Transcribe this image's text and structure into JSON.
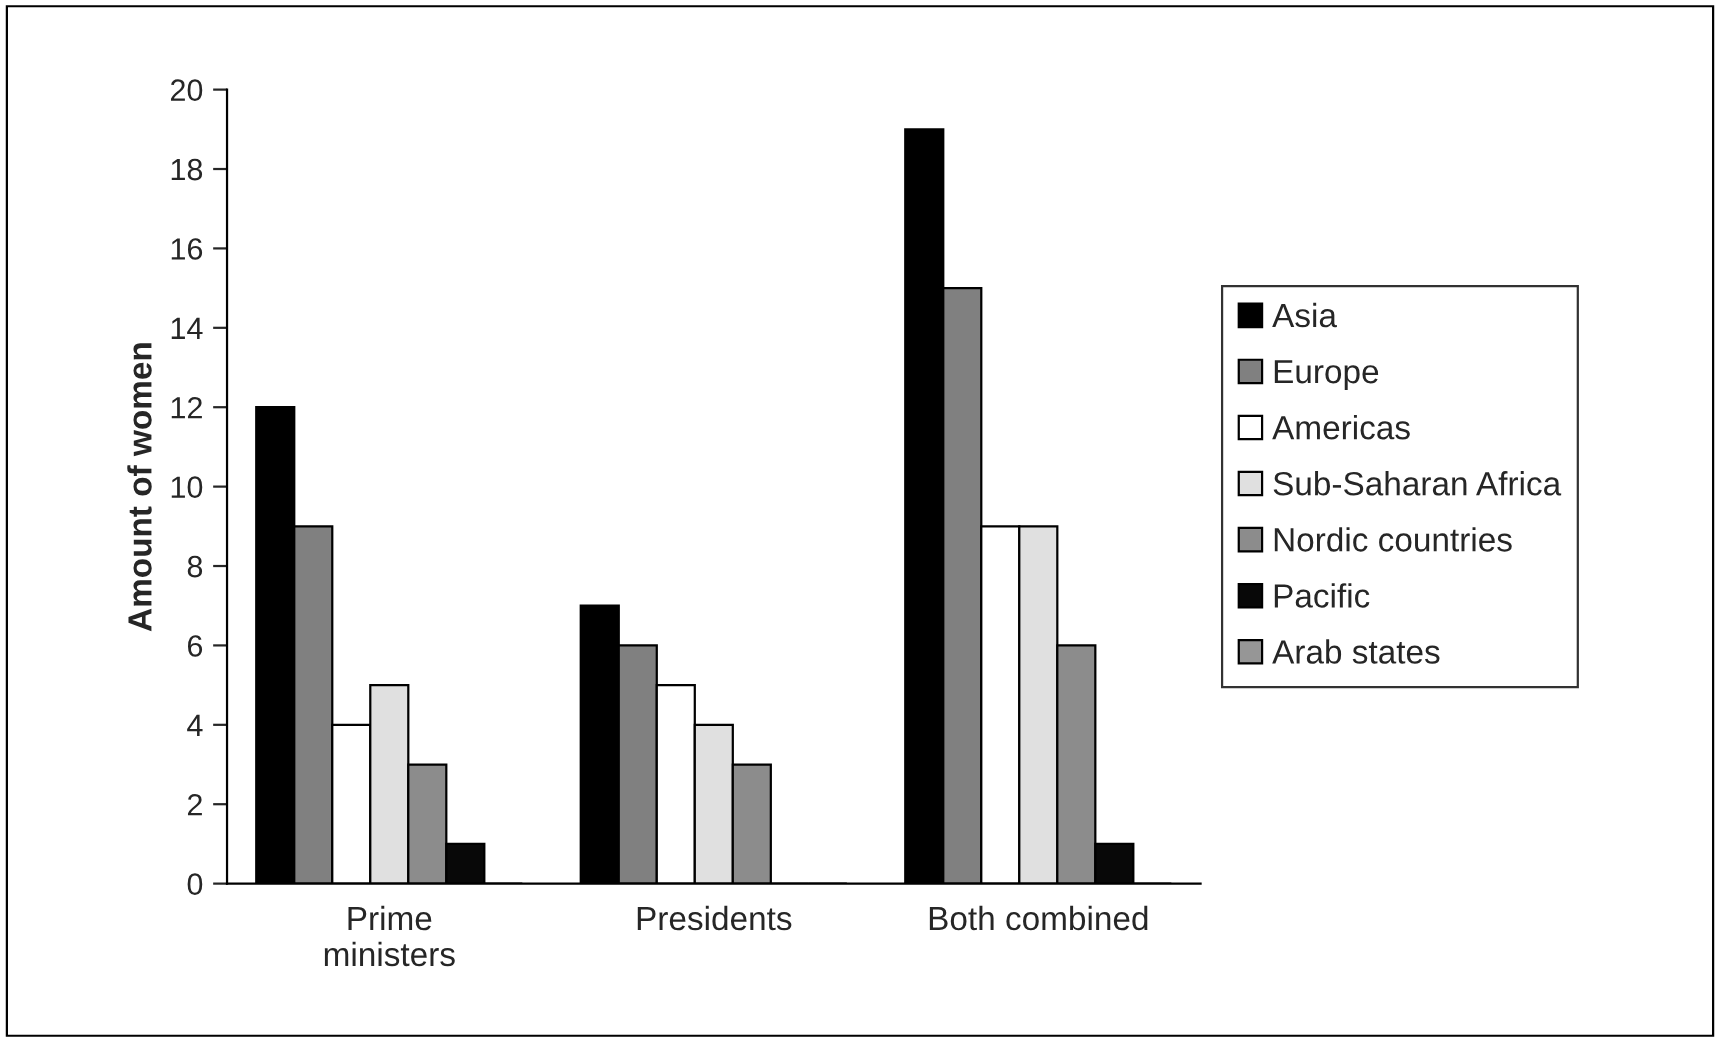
{
  "chart_data": {
    "type": "bar",
    "ylabel": "Amount of women",
    "categories": [
      "Prime ministers",
      "Presidents",
      "Both combined"
    ],
    "series": [
      {
        "name": "Asia",
        "color": "#000000",
        "values": [
          12,
          7,
          19
        ]
      },
      {
        "name": "Europe",
        "color": "#808080",
        "values": [
          9,
          6,
          15
        ]
      },
      {
        "name": "Americas",
        "color": "#ffffff",
        "values": [
          4,
          5,
          9
        ]
      },
      {
        "name": "Sub-Saharan Africa",
        "color": "#e0e0e0",
        "values": [
          5,
          4,
          9
        ]
      },
      {
        "name": "Nordic countries",
        "color": "#8c8c8c",
        "values": [
          3,
          3,
          6
        ]
      },
      {
        "name": "Pacific",
        "color": "#080808",
        "values": [
          1,
          0,
          1
        ]
      },
      {
        "name": "Arab states",
        "color": "#969696",
        "values": [
          0,
          0,
          0
        ]
      }
    ],
    "ylim": [
      0,
      20
    ],
    "yticks": [
      0,
      2,
      4,
      6,
      8,
      10,
      12,
      14,
      16,
      18,
      20
    ],
    "grid": false,
    "legend": "right"
  }
}
